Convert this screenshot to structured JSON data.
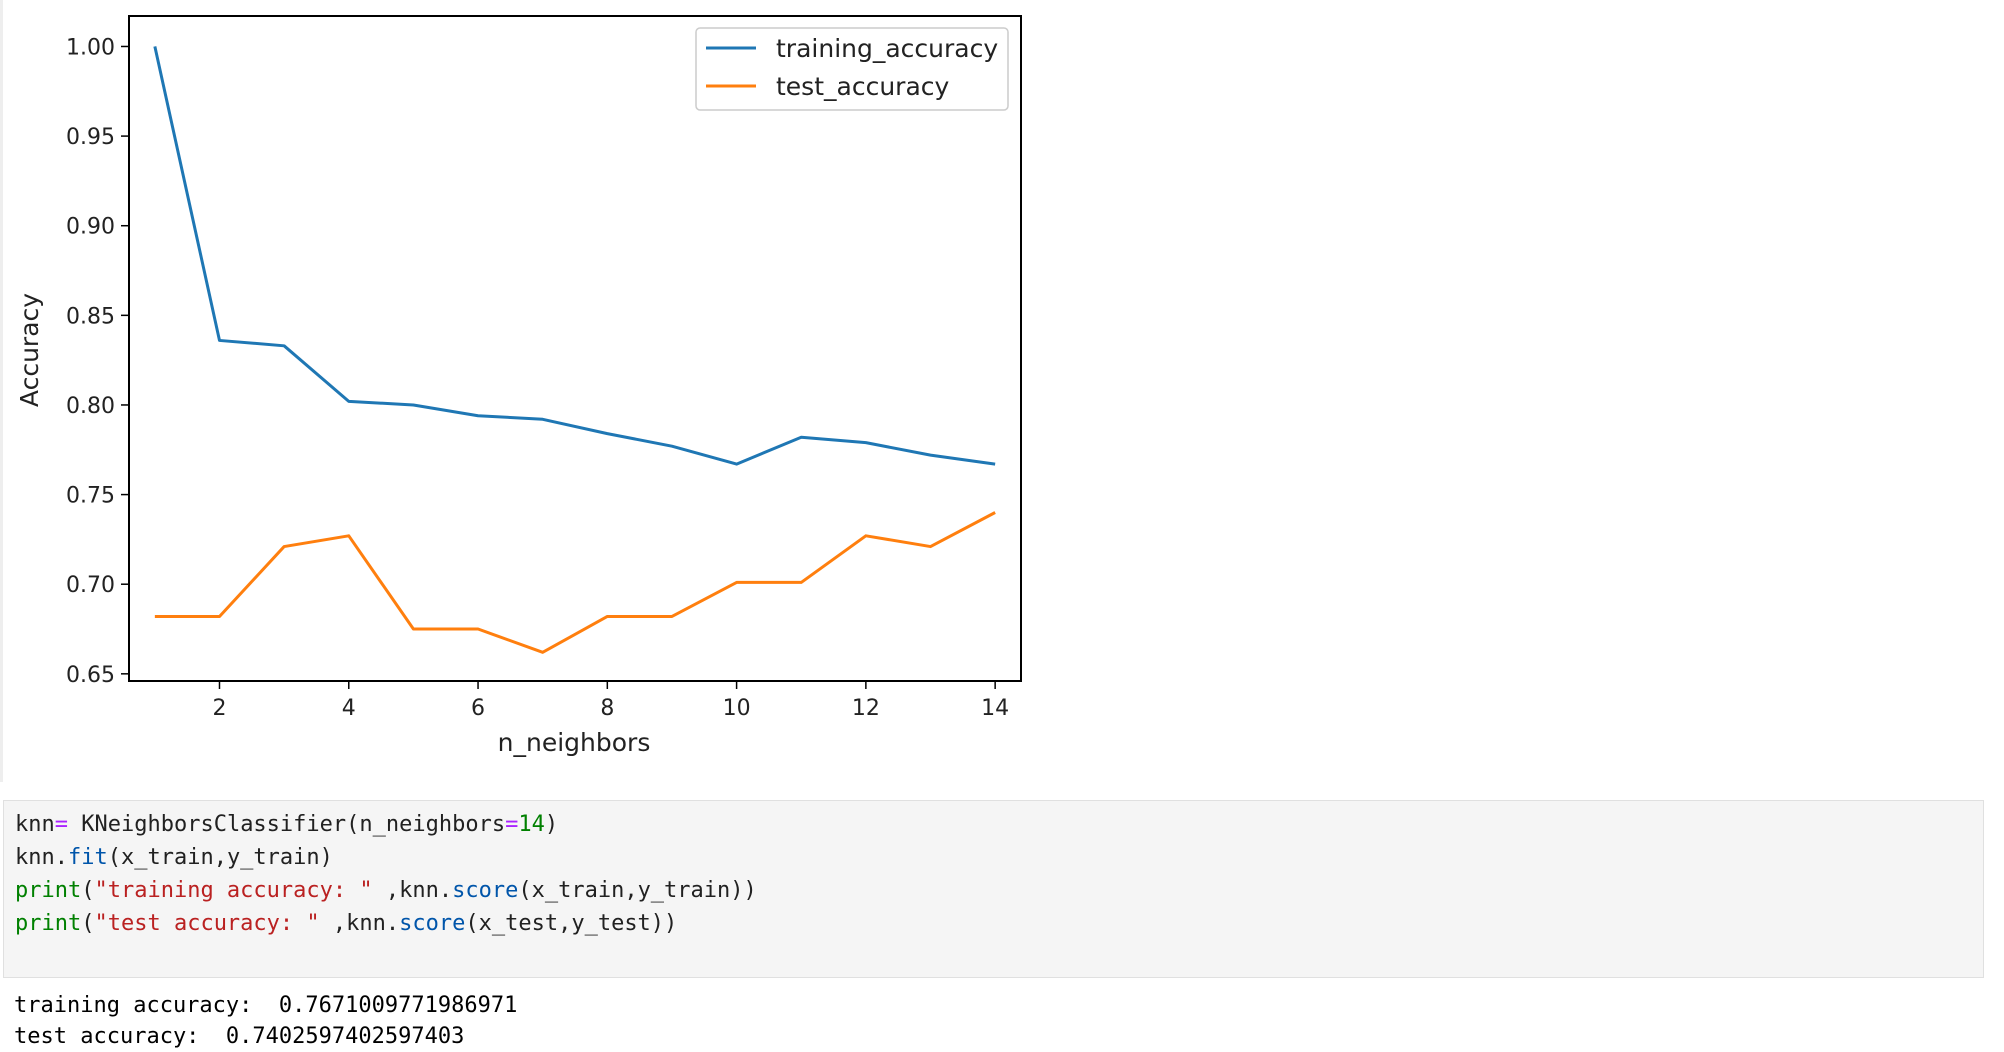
{
  "chart_data": {
    "type": "line",
    "xlabel": "n_neighbors",
    "ylabel": "Accuracy",
    "x": [
      1,
      2,
      3,
      4,
      5,
      6,
      7,
      8,
      9,
      10,
      11,
      12,
      13,
      14
    ],
    "xlim": [
      0.6,
      14.4
    ],
    "ylim": [
      0.646,
      1.017
    ],
    "xticks": [
      2,
      4,
      6,
      8,
      10,
      12,
      14
    ],
    "yticks": [
      0.65,
      0.7,
      0.75,
      0.8,
      0.85,
      0.9,
      0.95,
      1.0
    ],
    "xtick_labels": [
      "2",
      "4",
      "6",
      "8",
      "10",
      "12",
      "14"
    ],
    "ytick_labels": [
      "0.65",
      "0.70",
      "0.75",
      "0.80",
      "0.85",
      "0.90",
      "0.95",
      "1.00"
    ],
    "grid": false,
    "legend_position": "top-right",
    "series": [
      {
        "name": "training_accuracy",
        "color": "#1f77b4",
        "values": [
          1.0,
          0.836,
          0.833,
          0.802,
          0.8,
          0.794,
          0.792,
          0.784,
          0.777,
          0.767,
          0.782,
          0.779,
          0.772,
          0.767
        ]
      },
      {
        "name": "test_accuracy",
        "color": "#ff7f0e",
        "values": [
          0.682,
          0.682,
          0.721,
          0.727,
          0.675,
          0.675,
          0.662,
          0.682,
          0.682,
          0.701,
          0.701,
          0.727,
          0.721,
          0.74
        ]
      }
    ]
  },
  "code": {
    "line1": {
      "a": "knn",
      "b": "= ",
      "c": "KNeighborsClassifier(n_neighbors",
      "d": "=",
      "e": "14",
      "f": ")"
    },
    "line2": {
      "a": "knn.",
      "b": "fit",
      "c": "(x_train,y_train)"
    },
    "line3": {
      "a": "print",
      "b": "(",
      "c": "\"training accuracy: \"",
      "d": " ,knn.",
      "e": "score",
      "f": "(x_train,y_train))"
    },
    "line4": {
      "a": "print",
      "b": "(",
      "c": "\"test accuracy: \"",
      "d": " ,knn.",
      "e": "score",
      "f": "(x_test,y_test))"
    }
  },
  "output": {
    "line1": "training accuracy:  0.7671009771986971",
    "line2": "test accuracy:  0.7402597402597403"
  }
}
